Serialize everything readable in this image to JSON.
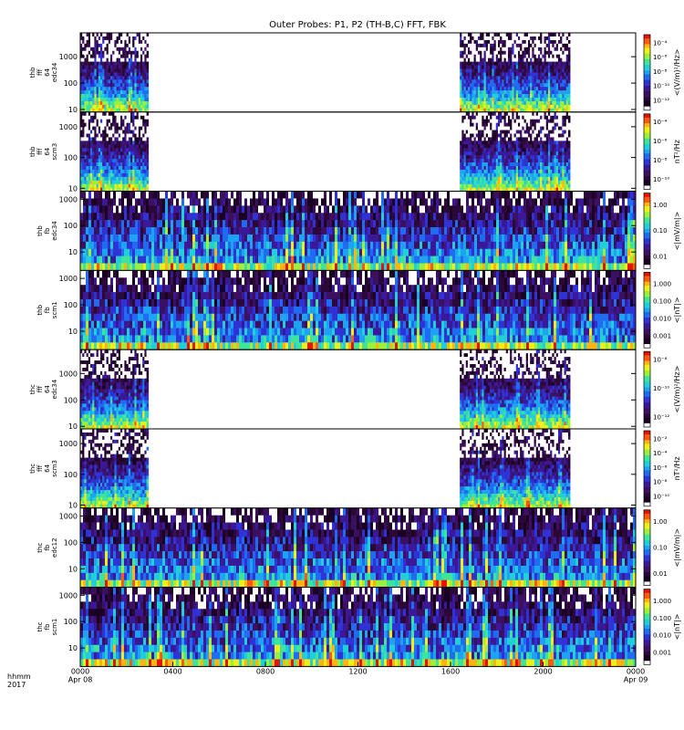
{
  "title": "Outer Probes: P1, P2 (TH-B,C) FFT, FBK",
  "time_axis": {
    "label_line1": "hhmm",
    "label_line2": "2017",
    "ticks": [
      {
        "hour": 0,
        "label": "0000",
        "date": "Apr 08"
      },
      {
        "hour": 4,
        "label": "0400",
        "date": ""
      },
      {
        "hour": 8,
        "label": "0800",
        "date": ""
      },
      {
        "hour": 12,
        "label": "1200",
        "date": ""
      },
      {
        "hour": 16,
        "label": "1600",
        "date": ""
      },
      {
        "hour": 20,
        "label": "2000",
        "date": ""
      },
      {
        "hour": 24,
        "label": "0000",
        "date": "Apr 09"
      }
    ]
  },
  "colors": {
    "colormap": [
      "#ffffff",
      "#1a0022",
      "#2a0838",
      "#3b1060",
      "#3a1898",
      "#2f33d6",
      "#1f6cf0",
      "#1ea3f2",
      "#22cfd8",
      "#3fe49a",
      "#9cef3a",
      "#eeee1c",
      "#ffb414",
      "#ff5810",
      "#e21508"
    ],
    "background": "#ffffff"
  },
  "chart_data": [
    {
      "type": "heatmap",
      "instrument": "FFT",
      "ylabel_lines": [
        "thb",
        "fff",
        "64",
        "edc34"
      ],
      "yticks": [
        10,
        100,
        1000
      ],
      "ytick_labels": [
        "10",
        "100",
        "1000"
      ],
      "yrange": [
        8,
        8000
      ],
      "data_hours": [
        [
          0,
          2.9
        ],
        [
          16.4,
          21.1
        ]
      ],
      "cbar_label": "<(V/m)²/Hz>",
      "cbar_ticks": [
        "10⁻¹²",
        "10⁻¹⁰",
        "10⁻⁸",
        "10⁻⁶",
        "10⁻⁴"
      ],
      "cbar_style": "fff"
    },
    {
      "type": "heatmap",
      "instrument": "FFT",
      "ylabel_lines": [
        "thb",
        "fff",
        "64",
        "scm3"
      ],
      "yticks": [
        10,
        100,
        1000
      ],
      "ytick_labels": [
        "10",
        "100",
        "1000"
      ],
      "yrange": [
        8,
        3000
      ],
      "data_hours": [
        [
          0,
          2.9
        ],
        [
          16.4,
          21.1
        ]
      ],
      "cbar_label": "nT²/Hz",
      "cbar_ticks": [
        "10⁻¹⁰",
        "10⁻⁸",
        "10⁻⁶",
        "10⁻⁴"
      ],
      "cbar_style": "fff"
    },
    {
      "type": "heatmap",
      "instrument": "FBK",
      "ylabel_lines": [
        "thb",
        "fb",
        "edc34"
      ],
      "yticks": [
        10,
        100,
        1000
      ],
      "ytick_labels": [
        "10",
        "100",
        "1000"
      ],
      "yrange": [
        2,
        2000
      ],
      "data_hours": [
        [
          0,
          24
        ]
      ],
      "cbar_label": "<|mV/m|>",
      "cbar_ticks": [
        "0.01",
        "0.10",
        "1.00"
      ],
      "cbar_style": "fb"
    },
    {
      "type": "heatmap",
      "instrument": "FBK",
      "ylabel_lines": [
        "thb",
        "fb",
        "scm1"
      ],
      "yticks": [
        10,
        100,
        1000
      ],
      "ytick_labels": [
        "10",
        "100",
        "1000"
      ],
      "yrange": [
        2,
        2000
      ],
      "data_hours": [
        [
          0,
          24
        ]
      ],
      "cbar_label": "<|nT|>",
      "cbar_ticks": [
        "0.001",
        "0.010",
        "0.100",
        "1.000"
      ],
      "cbar_style": "fb"
    },
    {
      "type": "heatmap",
      "instrument": "FFT",
      "ylabel_lines": [
        "thc",
        "fff",
        "64",
        "edc34"
      ],
      "yticks": [
        10,
        100,
        1000
      ],
      "ytick_labels": [
        "10",
        "100",
        "1000"
      ],
      "yrange": [
        8,
        8000
      ],
      "data_hours": [
        [
          0,
          2.9
        ],
        [
          16.4,
          21.1
        ]
      ],
      "cbar_label": "<(V/m)²/Hz>",
      "cbar_ticks": [
        "10⁻¹²",
        "10⁻¹⁰",
        "10⁻⁸"
      ],
      "cbar_style": "fff"
    },
    {
      "type": "heatmap",
      "instrument": "FFT",
      "ylabel_lines": [
        "thc",
        "fff",
        "64",
        "scm3"
      ],
      "yticks": [
        10,
        100,
        1000
      ],
      "ytick_labels": [
        "10",
        "100",
        "1000"
      ],
      "yrange": [
        8,
        3000
      ],
      "data_hours": [
        [
          0,
          2.9
        ],
        [
          16.4,
          21.1
        ]
      ],
      "cbar_label": "nT²/Hz",
      "cbar_ticks": [
        "10⁻¹⁰",
        "10⁻⁸",
        "10⁻⁶",
        "10⁻⁴",
        "10⁻²"
      ],
      "cbar_style": "fff"
    },
    {
      "type": "heatmap",
      "instrument": "FBK",
      "ylabel_lines": [
        "thc",
        "fb",
        "edc12"
      ],
      "yticks": [
        10,
        100,
        1000
      ],
      "ytick_labels": [
        "10",
        "100",
        "1000"
      ],
      "yrange": [
        2,
        2000
      ],
      "data_hours": [
        [
          0,
          24
        ]
      ],
      "cbar_label": "<|mV/m|>",
      "cbar_ticks": [
        "0.01",
        "0.10",
        "1.00"
      ],
      "cbar_style": "fb"
    },
    {
      "type": "heatmap",
      "instrument": "FBK",
      "ylabel_lines": [
        "thc",
        "fb",
        "scm1"
      ],
      "yticks": [
        10,
        100,
        1000
      ],
      "ytick_labels": [
        "10",
        "100",
        "1000"
      ],
      "yrange": [
        2,
        2000
      ],
      "data_hours": [
        [
          0,
          24
        ]
      ],
      "cbar_label": "<|nT|>",
      "cbar_ticks": [
        "0.001",
        "0.010",
        "0.100",
        "1.000"
      ],
      "cbar_style": "fb"
    }
  ]
}
